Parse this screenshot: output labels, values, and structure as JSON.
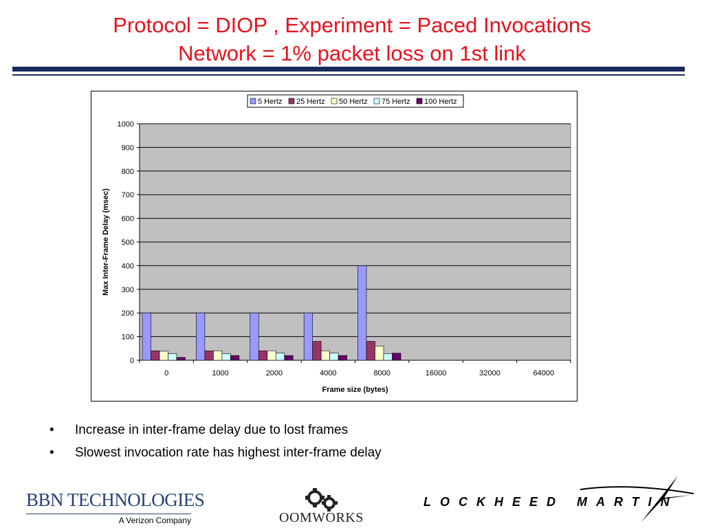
{
  "slide": {
    "title_line1": "Protocol = DIOP , Experiment = Paced Invocations",
    "title_line2": "Network = 1% packet loss on 1st link"
  },
  "chart_data": {
    "type": "bar",
    "title": "",
    "xlabel": "Frame size (bytes)",
    "ylabel": "Max Inter-Frame Delay (msec)",
    "categories": [
      "0",
      "1000",
      "2000",
      "4000",
      "8000",
      "16000",
      "32000",
      "64000"
    ],
    "ylim": [
      0,
      1000
    ],
    "yticks": [
      0,
      100,
      200,
      300,
      400,
      500,
      600,
      700,
      800,
      900,
      1000
    ],
    "grid": true,
    "plot_background": "#c0c0c0",
    "legend_position": "top",
    "series": [
      {
        "name": "5 Hertz",
        "color": "#9999ff",
        "values": [
          200,
          200,
          200,
          200,
          400,
          null,
          null,
          null
        ]
      },
      {
        "name": "25 Hertz",
        "color": "#993366",
        "values": [
          40,
          40,
          40,
          80,
          80,
          null,
          null,
          null
        ]
      },
      {
        "name": "50 Hertz",
        "color": "#ffffcc",
        "values": [
          38,
          40,
          40,
          40,
          60,
          null,
          null,
          null
        ]
      },
      {
        "name": "75 Hertz",
        "color": "#ccffff",
        "values": [
          28,
          28,
          30,
          30,
          28,
          null,
          null,
          null
        ]
      },
      {
        "name": "100 Hertz",
        "color": "#660066",
        "values": [
          12,
          20,
          20,
          20,
          30,
          null,
          null,
          null
        ]
      }
    ]
  },
  "bullets": [
    "Increase in inter-frame delay due to lost frames",
    "Slowest invocation rate has highest inter-frame delay"
  ],
  "logos": {
    "bbn_name": "BBN TECHNOLOGIES",
    "bbn_sub": "A Verizon Company",
    "oom_name": "OOMWORKS",
    "lm_name": "LOCKHEED MARTIN"
  },
  "colors": {
    "title": "#e8111d",
    "rule": "#1a2a5c"
  }
}
